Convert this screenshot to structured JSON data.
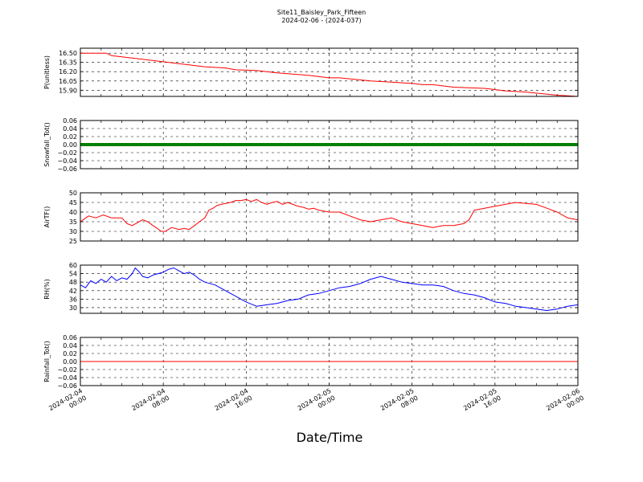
{
  "title": {
    "line1": "Site11_Baisley_Park_Fifteen",
    "line2": "2024-02-06 - (2024-037)"
  },
  "x_axis_label": "Date/Time",
  "chart_data": {
    "type": "line",
    "x_range": [
      "2024-02-04 00:00",
      "2024-02-06 00:00"
    ],
    "x_ticks": [
      [
        "2024-02-04",
        "00:00"
      ],
      [
        "2024-02-04",
        "08:00"
      ],
      [
        "2024-02-04",
        "16:00"
      ],
      [
        "2024-02-05",
        "00:00"
      ],
      [
        "2024-02-05",
        "08:00"
      ],
      [
        "2024-02-05",
        "16:00"
      ],
      [
        "2024-02-06",
        "00:00"
      ]
    ],
    "grid": true,
    "panels": [
      {
        "ylabel": "P(unitless)",
        "color": "#ff0000",
        "line_width": 1,
        "ylim": [
          15.8,
          16.58
        ],
        "yticks": [
          "15.90",
          "16.05",
          "16.20",
          "16.35",
          "16.50"
        ],
        "series": {
          "x_hours": [
            0,
            2.5,
            3,
            5,
            8,
            10,
            12,
            14,
            15,
            17,
            19,
            22,
            24,
            25,
            28,
            30,
            32,
            33,
            34,
            36,
            39,
            40,
            41,
            43,
            46,
            48,
            48.3
          ],
          "y": [
            16.5,
            16.5,
            16.46,
            16.42,
            16.36,
            16.32,
            16.28,
            16.26,
            16.23,
            16.22,
            16.18,
            16.14,
            16.1,
            16.1,
            16.05,
            16.03,
            16.01,
            15.99,
            15.99,
            15.95,
            15.93,
            15.91,
            15.89,
            15.87,
            15.82,
            15.8,
            15.8
          ]
        }
      },
      {
        "ylabel": "Snowfall_Tot()",
        "color": "#008000",
        "line_width": 4,
        "ylim": [
          -0.06,
          0.06
        ],
        "yticks": [
          "−0.06",
          "−0.04",
          "−0.02",
          "0.00",
          "0.02",
          "0.04",
          "0.06"
        ],
        "series": {
          "x_hours": [
            0,
            48
          ],
          "y": [
            0,
            0
          ]
        }
      },
      {
        "ylabel": "AirTF()",
        "color": "#ff0000",
        "line_width": 1,
        "ylim": [
          25,
          50
        ],
        "yticks": [
          "25",
          "30",
          "35",
          "40",
          "45",
          "50"
        ],
        "series": {
          "x_hours": [
            0,
            0.8,
            1.5,
            2.2,
            3,
            4,
            4.5,
            5,
            6,
            6.5,
            7,
            7.3,
            7.8,
            8.2,
            8.8,
            9.5,
            10,
            10.5,
            11,
            11.5,
            12,
            12.4,
            12.8,
            13.2,
            13.6,
            14,
            14.5,
            15,
            15.5,
            16,
            16.5,
            17,
            17.5,
            18,
            18.5,
            19,
            19.5,
            20,
            20.5,
            21,
            21.5,
            22,
            22.5,
            23,
            24,
            25,
            26,
            27,
            28,
            29,
            30,
            31,
            32,
            33,
            34,
            35,
            36,
            37,
            37.5,
            38,
            39,
            40,
            41,
            42,
            43,
            44,
            45,
            46,
            47,
            48
          ],
          "y": [
            35,
            38,
            37,
            38.5,
            37,
            37,
            34,
            33,
            36,
            35,
            33,
            32,
            30,
            30,
            32,
            31,
            31.5,
            31,
            33,
            35,
            37,
            41,
            42,
            43.5,
            44,
            44.5,
            45,
            46,
            46,
            46.5,
            45.5,
            46.5,
            45,
            44,
            45,
            45.5,
            44,
            45,
            44,
            43,
            42.5,
            41.5,
            42,
            41,
            40,
            40,
            38,
            36,
            35,
            36,
            37,
            35,
            34,
            33,
            32,
            33,
            33,
            34,
            36,
            41,
            42,
            43,
            44,
            45,
            44.5,
            44,
            42,
            40,
            37,
            36
          ]
        }
      },
      {
        "ylabel": "RH(%)",
        "color": "#0000ff",
        "line_width": 1,
        "ylim": [
          26,
          60
        ],
        "yticks": [
          "30",
          "36",
          "42",
          "48",
          "54",
          "60"
        ],
        "series": {
          "x_hours": [
            0,
            0.5,
            1,
            1.5,
            2,
            2.5,
            3,
            3.5,
            4,
            4.5,
            5,
            5.3,
            5.7,
            6,
            6.5,
            7,
            7.5,
            8,
            8.5,
            9,
            9.5,
            10,
            10.5,
            11,
            11.5,
            12,
            13,
            14,
            15,
            16,
            17,
            18,
            19,
            20,
            21,
            22,
            23,
            24,
            25,
            26,
            27,
            28,
            29,
            30,
            31,
            32,
            33,
            34,
            35,
            36,
            37,
            38,
            39,
            40,
            41,
            42,
            43,
            44,
            45,
            46,
            47,
            48
          ],
          "y": [
            46,
            44,
            49,
            47,
            50,
            48,
            52,
            49,
            51,
            50,
            54,
            58,
            55,
            52,
            51,
            53,
            54,
            55,
            57,
            58,
            56,
            54,
            55,
            53,
            50,
            48,
            46,
            42,
            38,
            34,
            31,
            32,
            33,
            35,
            36,
            39,
            40,
            42,
            44,
            45,
            47,
            50,
            52,
            50,
            48,
            47,
            46,
            46,
            45,
            42,
            40,
            39,
            37,
            34,
            33,
            31,
            30,
            29,
            28,
            29,
            31,
            32
          ]
        }
      },
      {
        "ylabel": "Rainfall_Tot()",
        "color": "#ff0000",
        "line_width": 1,
        "ylim": [
          -0.06,
          0.06
        ],
        "yticks": [
          "−0.06",
          "−0.04",
          "−0.02",
          "0.00",
          "0.02",
          "0.04",
          "0.06"
        ],
        "series": {
          "x_hours": [
            0,
            48
          ],
          "y": [
            0,
            0
          ]
        }
      }
    ]
  }
}
